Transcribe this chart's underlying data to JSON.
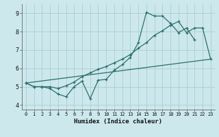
{
  "xlabel": "Humidex (Indice chaleur)",
  "bg_color": "#cce8ec",
  "grid_color": "#aacdd2",
  "line_color": "#2a6e6a",
  "xlim": [
    -0.5,
    23.5
  ],
  "ylim": [
    3.75,
    9.5
  ],
  "xticks": [
    0,
    1,
    2,
    3,
    4,
    5,
    6,
    7,
    8,
    9,
    10,
    11,
    12,
    13,
    14,
    15,
    16,
    17,
    18,
    19,
    20,
    21,
    22,
    23
  ],
  "yticks": [
    4,
    5,
    6,
    7,
    8,
    9
  ],
  "line1_x": [
    0,
    1,
    2,
    3,
    4,
    5,
    6,
    7,
    8,
    9,
    10,
    11,
    12,
    13,
    14,
    15,
    16,
    17,
    18,
    19,
    20,
    21
  ],
  "line1_y": [
    5.2,
    5.0,
    5.0,
    4.9,
    4.6,
    4.45,
    5.0,
    5.3,
    4.35,
    5.35,
    5.4,
    5.9,
    6.2,
    6.6,
    7.4,
    9.05,
    8.85,
    8.85,
    8.45,
    7.95,
    8.2,
    7.55
  ],
  "line2_x": [
    0,
    1,
    2,
    3,
    4,
    5,
    6,
    7,
    8,
    9,
    10,
    11,
    12,
    13,
    14,
    15,
    16,
    17,
    18,
    19,
    20,
    21,
    22,
    23
  ],
  "line2_y": [
    5.2,
    5.0,
    5.0,
    5.0,
    4.9,
    5.05,
    5.25,
    5.55,
    5.75,
    5.95,
    6.1,
    6.3,
    6.5,
    6.75,
    7.1,
    7.4,
    7.8,
    8.05,
    8.35,
    8.55,
    7.95,
    8.2,
    8.2,
    6.5
  ],
  "line3_x": [
    0,
    23
  ],
  "line3_y": [
    5.2,
    6.5
  ]
}
